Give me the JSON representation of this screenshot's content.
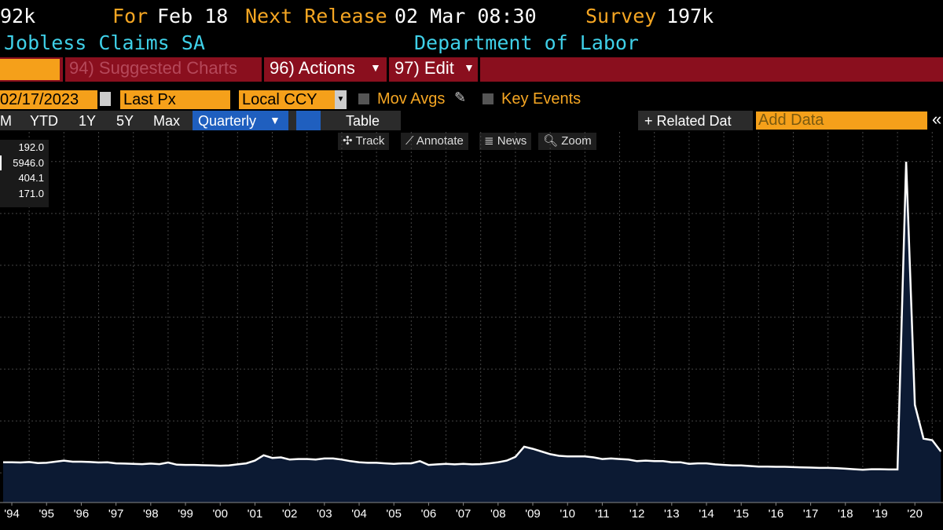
{
  "header": {
    "last": "92k",
    "for_label": "For",
    "for_date": "Feb 18",
    "release_label": "Next Release",
    "release_time": "02 Mar 08:30",
    "survey_label": "Survey",
    "survey_value": "197k",
    "security": "Jobless Claims SA",
    "source": "Department of Labor"
  },
  "menu": {
    "suggested": "94) Suggested Charts",
    "actions": "96) Actions",
    "edit": "97) Edit"
  },
  "controls": {
    "date": "02/17/2023",
    "field": "Last Px",
    "currency": "Local CCY",
    "mov_avgs": "Mov Avgs",
    "key_events": "Key Events"
  },
  "toolbar": {
    "ranges": [
      "M",
      "YTD",
      "1Y",
      "5Y",
      "Max"
    ],
    "period": "Quarterly",
    "table": "Table",
    "related": "+ Related Dat",
    "add_data": "Add Data"
  },
  "tools": [
    "Track",
    "Annotate",
    "News",
    "Zoom"
  ],
  "legend_box": [
    "192.0",
    "5946.0",
    "404.1",
    "171.0"
  ],
  "chart_data": {
    "type": "area",
    "color": "#ffffff",
    "fill": "#0c1a33",
    "x": [
      1994.25,
      1994.5,
      1994.75,
      1995,
      1995.25,
      1995.5,
      1995.75,
      1996,
      1996.25,
      1996.5,
      1996.75,
      1997,
      1997.25,
      1997.5,
      1997.75,
      1998,
      1998.25,
      1998.5,
      1998.75,
      1999,
      1999.25,
      1999.5,
      1999.75,
      2000,
      2000.25,
      2000.5,
      2000.75,
      2001,
      2001.25,
      2001.5,
      2001.75,
      2002,
      2002.25,
      2002.5,
      2002.75,
      2003,
      2003.25,
      2003.5,
      2003.75,
      2004,
      2004.25,
      2004.5,
      2004.75,
      2005,
      2005.25,
      2005.5,
      2005.75,
      2006,
      2006.25,
      2006.5,
      2006.75,
      2007,
      2007.25,
      2007.5,
      2007.75,
      2008,
      2008.25,
      2008.5,
      2008.75,
      2009,
      2009.25,
      2009.5,
      2009.75,
      2010,
      2010.25,
      2010.5,
      2010.75,
      2011,
      2011.25,
      2011.5,
      2011.75,
      2012,
      2012.25,
      2012.5,
      2012.75,
      2013,
      2013.25,
      2013.5,
      2013.75,
      2014,
      2014.25,
      2014.5,
      2014.75,
      2015,
      2015.25,
      2015.5,
      2015.75,
      2016,
      2016.25,
      2016.5,
      2016.75,
      2017,
      2017.25,
      2017.5,
      2017.75,
      2018,
      2018.25,
      2018.5,
      2018.75,
      2019,
      2019.25,
      2019.5,
      2019.75,
      2020,
      2020.25,
      2020.5,
      2020.75,
      2021,
      2021.25
    ],
    "values": [
      350,
      350,
      345,
      355,
      335,
      340,
      360,
      380,
      360,
      360,
      355,
      345,
      350,
      330,
      325,
      320,
      315,
      325,
      315,
      345,
      305,
      300,
      300,
      295,
      290,
      285,
      290,
      310,
      330,
      380,
      480,
      430,
      440,
      400,
      410,
      410,
      400,
      420,
      420,
      400,
      370,
      350,
      340,
      340,
      330,
      320,
      330,
      330,
      370,
      300,
      310,
      320,
      310,
      320,
      310,
      315,
      330,
      350,
      380,
      450,
      640,
      600,
      550,
      500,
      470,
      460,
      460,
      460,
      440,
      410,
      420,
      410,
      400,
      370,
      380,
      370,
      370,
      350,
      350,
      320,
      330,
      330,
      310,
      300,
      290,
      290,
      280,
      270,
      270,
      265,
      265,
      260,
      255,
      250,
      245,
      245,
      240,
      230,
      220,
      210,
      220,
      220,
      215,
      215,
      5946,
      1418,
      790,
      760,
      550
    ],
    "xlim": [
      1994.16,
      2021.31
    ],
    "xticks": [
      {
        "value": 1994.5,
        "label": "'94"
      },
      {
        "value": 1995.5,
        "label": "'95"
      },
      {
        "value": 1996.5,
        "label": "'96"
      },
      {
        "value": 1997.5,
        "label": "'97"
      },
      {
        "value": 1998.5,
        "label": "'98"
      },
      {
        "value": 1999.5,
        "label": "'99"
      },
      {
        "value": 2000.5,
        "label": "'00"
      },
      {
        "value": 2001.5,
        "label": "'01"
      },
      {
        "value": 2002.5,
        "label": "'02"
      },
      {
        "value": 2003.5,
        "label": "'03"
      },
      {
        "value": 2004.5,
        "label": "'04"
      },
      {
        "value": 2005.5,
        "label": "'05"
      },
      {
        "value": 2006.5,
        "label": "'06"
      },
      {
        "value": 2007.5,
        "label": "'07"
      },
      {
        "value": 2008.5,
        "label": "'08"
      },
      {
        "value": 2009.5,
        "label": "'09"
      },
      {
        "value": 2010.5,
        "label": "'10"
      },
      {
        "value": 2011.5,
        "label": "'11"
      },
      {
        "value": 2012.5,
        "label": "'12"
      },
      {
        "value": 2013.5,
        "label": "'13"
      },
      {
        "value": 2014.5,
        "label": "'14"
      },
      {
        "value": 2015.5,
        "label": "'15"
      },
      {
        "value": 2016.5,
        "label": "'16"
      },
      {
        "value": 2017.5,
        "label": "'17"
      },
      {
        "value": 2018.5,
        "label": "'18"
      },
      {
        "value": 2019.5,
        "label": "'19"
      },
      {
        "value": 2020.5,
        "label": "'20"
      }
    ],
    "ylim": [
      -400,
      6500
    ]
  }
}
